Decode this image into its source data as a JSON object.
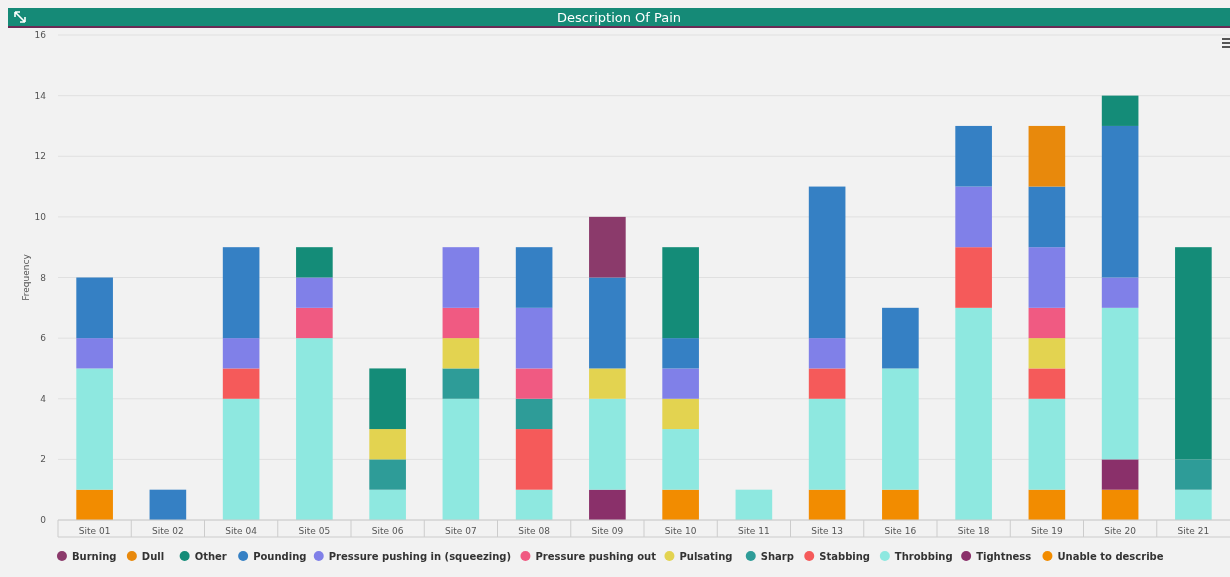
{
  "chart_data": {
    "type": "bar",
    "title": "Description Of Pain",
    "ylabel": "Frequency",
    "stacked": true,
    "grid": "y",
    "legend": "bottom",
    "categories": [
      "Site 01",
      "Site 02",
      "Site 04",
      "Site 05",
      "Site 06",
      "Site 07",
      "Site 08",
      "Site 09",
      "Site 10",
      "Site 11",
      "Site 13",
      "Site 16",
      "Site 18",
      "Site 19",
      "Site 20",
      "Site 21"
    ],
    "ylim": [
      0,
      16
    ],
    "yticks": [
      0,
      2,
      4,
      6,
      8,
      10,
      12,
      14,
      16
    ],
    "series": [
      {
        "name": "Unable to describe",
        "color": "#f28c00",
        "values": [
          1,
          0,
          0,
          0,
          0,
          0,
          0,
          0,
          1,
          0,
          1,
          1,
          0,
          1,
          1,
          0
        ]
      },
      {
        "name": "Tightness",
        "color": "#8a306a",
        "values": [
          0,
          0,
          0,
          0,
          0,
          0,
          0,
          1,
          0,
          0,
          0,
          0,
          0,
          0,
          1,
          0
        ]
      },
      {
        "name": "Throbbing",
        "color": "#8ee8e0",
        "values": [
          4,
          0,
          4,
          6,
          1,
          4,
          1,
          3,
          2,
          1,
          3,
          4,
          7,
          3,
          5,
          1
        ]
      },
      {
        "name": "Stabbing",
        "color": "#f55a5a",
        "values": [
          0,
          0,
          1,
          0,
          0,
          0,
          2,
          0,
          0,
          0,
          1,
          0,
          2,
          1,
          0,
          0
        ]
      },
      {
        "name": "Sharp",
        "color": "#2e9c98",
        "values": [
          0,
          0,
          0,
          0,
          1,
          1,
          1,
          0,
          0,
          0,
          0,
          0,
          0,
          0,
          0,
          1
        ]
      },
      {
        "name": "Pulsating",
        "color": "#e3d350",
        "values": [
          0,
          0,
          0,
          0,
          1,
          1,
          0,
          1,
          1,
          0,
          0,
          0,
          0,
          1,
          0,
          0
        ]
      },
      {
        "name": "Pressure pushing out",
        "color": "#f05a82",
        "values": [
          0,
          0,
          0,
          1,
          0,
          1,
          1,
          0,
          0,
          0,
          0,
          0,
          0,
          1,
          0,
          0
        ]
      },
      {
        "name": "Pressure pushing in (squeezing)",
        "color": "#8080e8",
        "values": [
          1,
          0,
          1,
          1,
          0,
          2,
          2,
          0,
          1,
          0,
          1,
          0,
          2,
          2,
          1,
          0
        ]
      },
      {
        "name": "Pounding",
        "color": "#3580c4",
        "values": [
          2,
          1,
          3,
          0,
          0,
          0,
          2,
          3,
          1,
          0,
          5,
          2,
          2,
          2,
          5,
          0
        ]
      },
      {
        "name": "Other",
        "color": "#148c78",
        "values": [
          0,
          0,
          0,
          1,
          2,
          0,
          0,
          0,
          3,
          0,
          0,
          0,
          0,
          0,
          1,
          7
        ]
      },
      {
        "name": "Dull",
        "color": "#e8890c",
        "values": [
          0,
          0,
          0,
          0,
          0,
          0,
          0,
          0,
          0,
          0,
          0,
          0,
          0,
          2,
          0,
          0
        ]
      },
      {
        "name": "Burning",
        "color": "#8b3a6b",
        "values": [
          0,
          0,
          0,
          0,
          0,
          0,
          0,
          2,
          0,
          0,
          0,
          0,
          0,
          0,
          0,
          0
        ]
      }
    ]
  }
}
